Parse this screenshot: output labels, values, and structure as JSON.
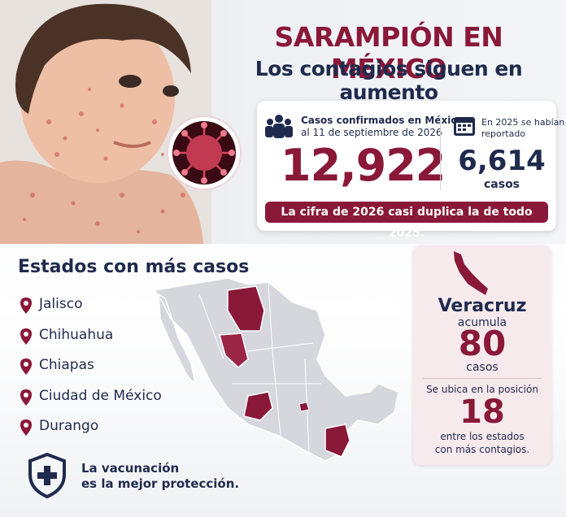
{
  "header": {
    "title": "SARAMPIÓN EN MÉXICO",
    "subtitle": "Los contagios siguen en aumento"
  },
  "stats": {
    "confirmed_label_line1": "Casos confirmados en México",
    "confirmed_label_line2": "al 11 de septiembre de 2026",
    "confirmed_value": "12,922",
    "prev_label_line1": "En 2025 se habían",
    "prev_label_line2": "reportado",
    "prev_value": "6,614",
    "prev_unit": "casos",
    "note": "La cifra de 2026 casi duplica la de todo 2025."
  },
  "states": {
    "title": "Estados con más casos",
    "items": [
      "Jalisco",
      "Chihuahua",
      "Chiapas",
      "Ciudad de México",
      "Durango"
    ]
  },
  "veracruz": {
    "name": "Veracruz",
    "verb": "acumula",
    "cases": "80",
    "unit": "casos",
    "rank_text": "Se ubica en la posición",
    "rank": "18",
    "rank_note_line1": "entre los estados",
    "rank_note_line2": "con más contagios."
  },
  "footer": {
    "line1": "La vacunación",
    "line2": "es la mejor protección."
  }
}
